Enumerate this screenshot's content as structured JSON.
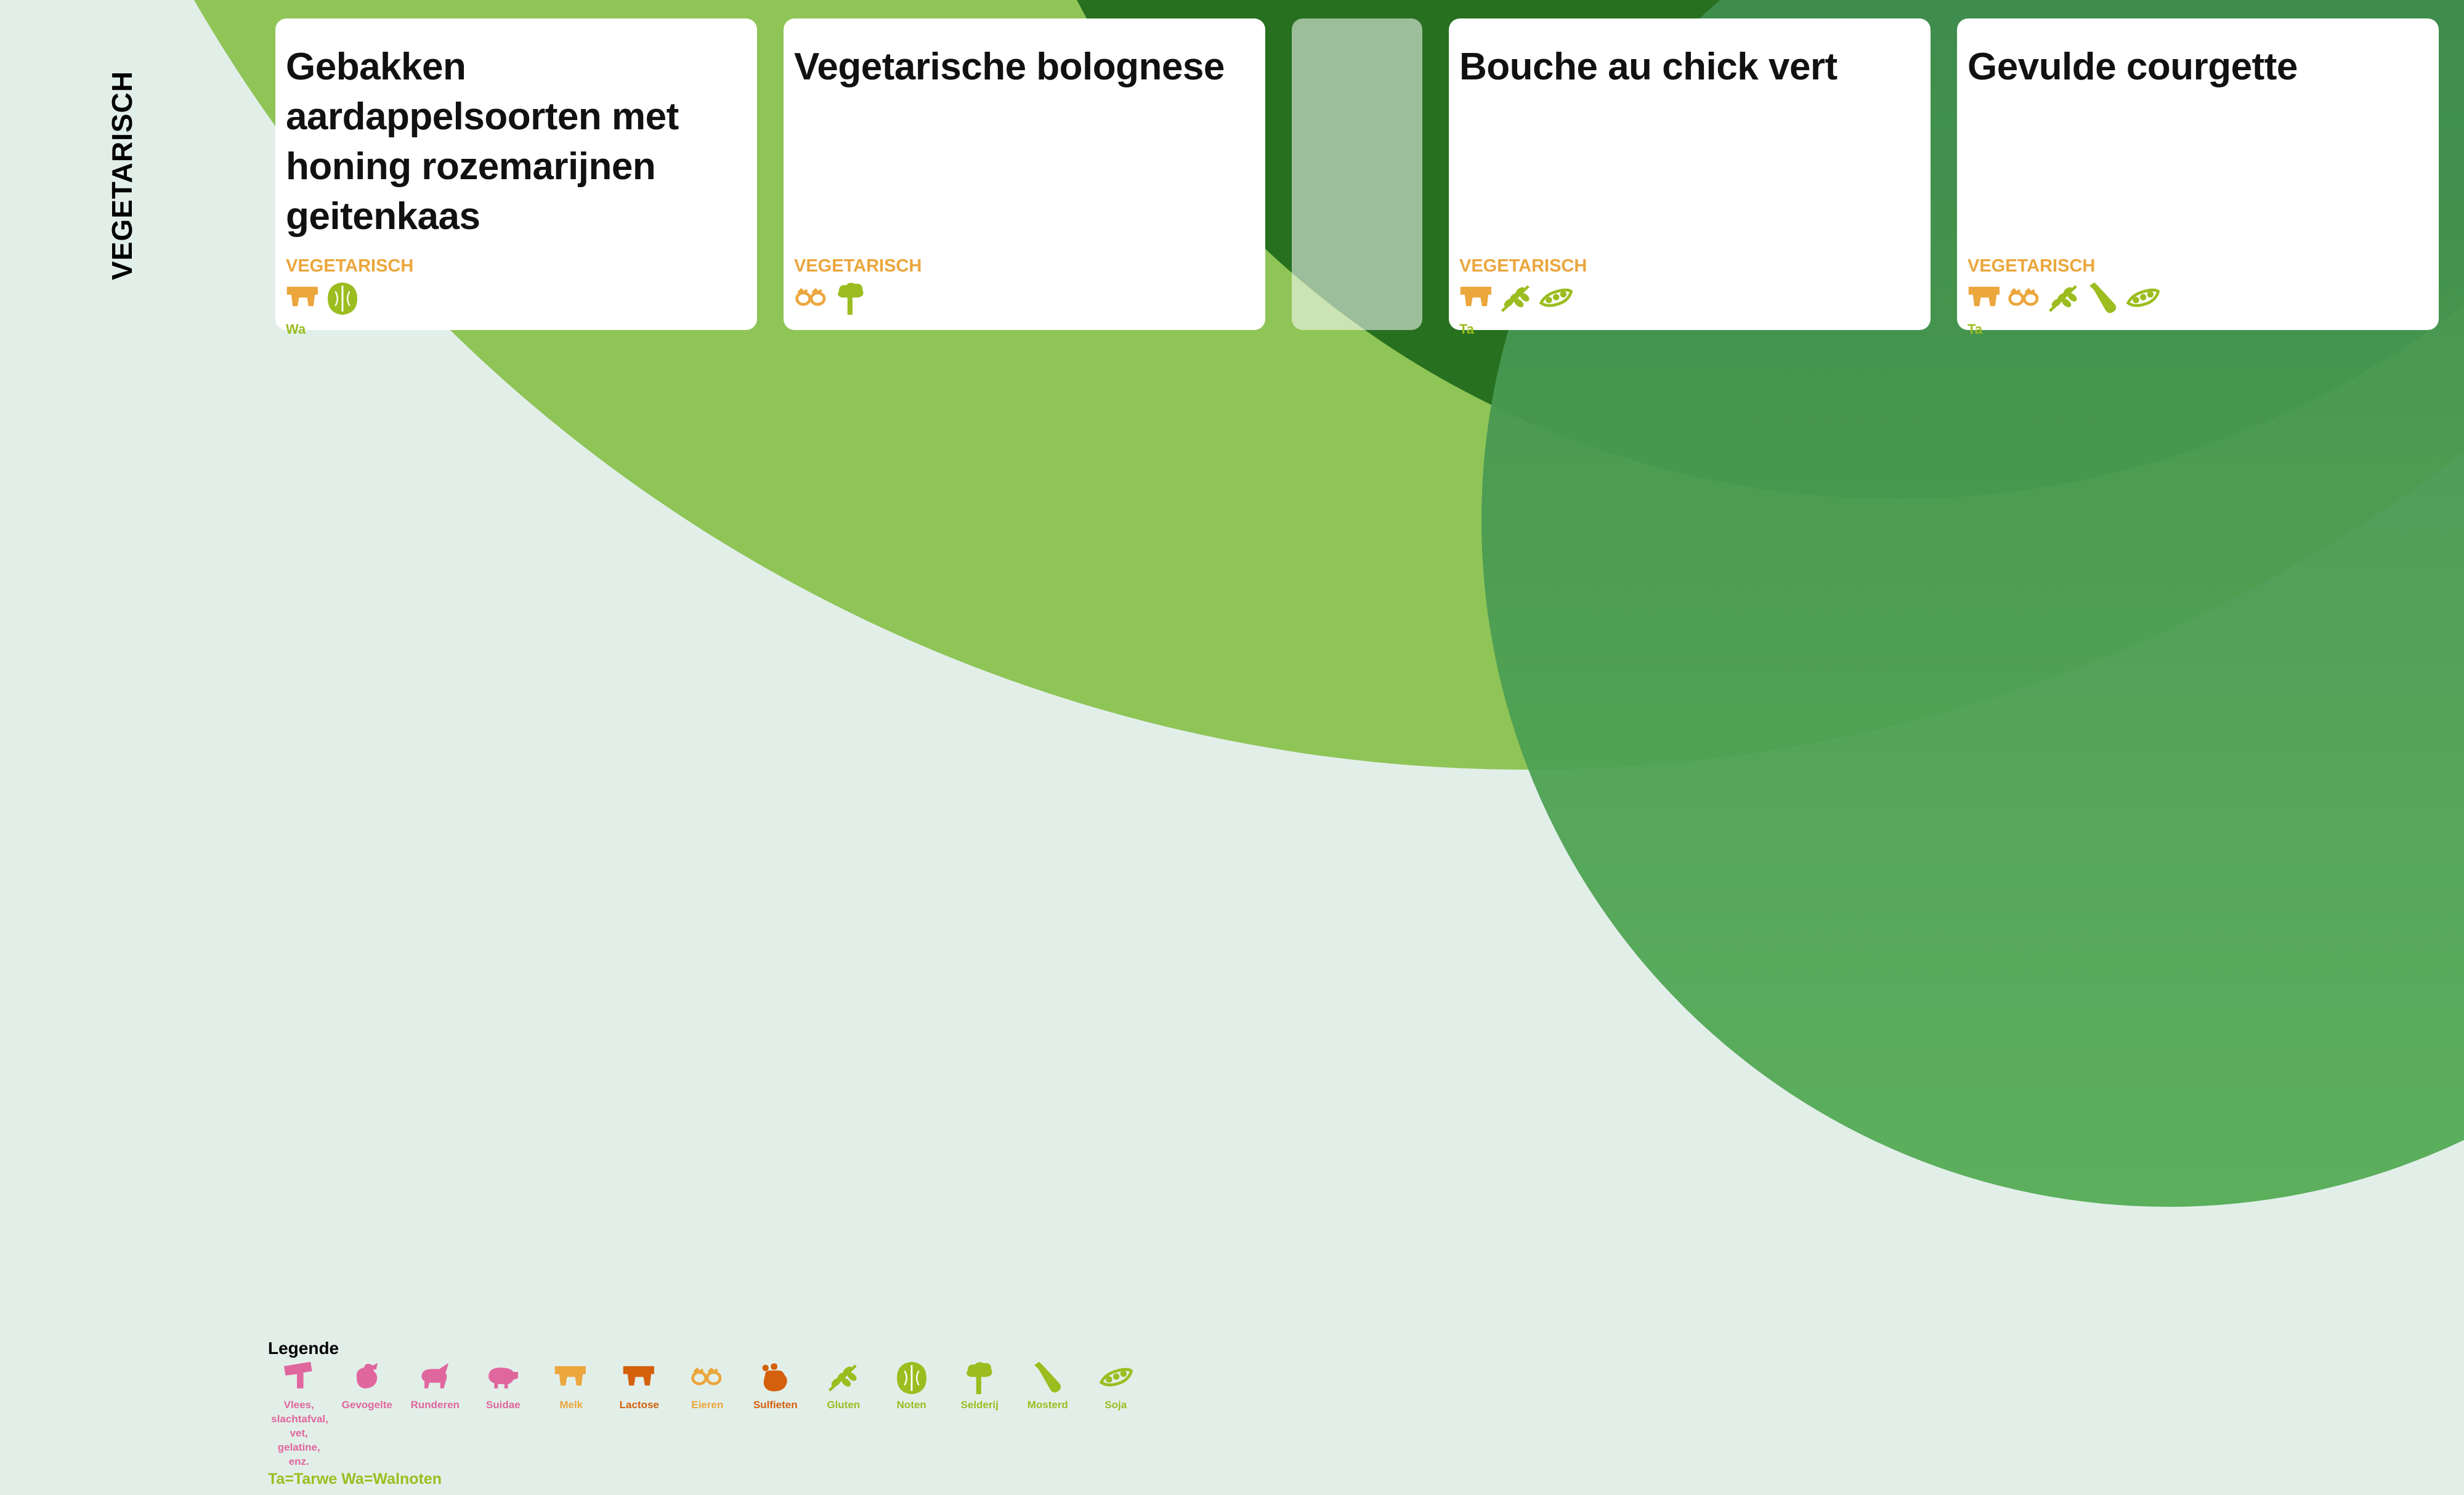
{
  "section_title": "VEGETARISCH",
  "colors": {
    "background": "#e2efe9",
    "meat": "#e0669e",
    "dairy": "#eba63c",
    "sulfite": "#d4600c",
    "plant": "#9bbd1f",
    "deco_light": "#8fc457",
    "deco_dark": "#26701f",
    "deco_mid": "#4a9a52"
  },
  "cards": [
    {
      "title": "Gebakken aardappelsoorten met honing rozemarijnen geitenkaas",
      "badge": "VEGETARISCH",
      "allergen_icons": [
        "melk-icon",
        "noten-icon"
      ],
      "note": "Wa"
    },
    {
      "title": "Vegetarische bolognese",
      "badge": "VEGETARISCH",
      "allergen_icons": [
        "eieren-icon",
        "selderij-icon"
      ],
      "note": ""
    },
    {
      "title": "",
      "badge": "",
      "allergen_icons": [],
      "note": ""
    },
    {
      "title": "Bouche au chick vert",
      "badge": "VEGETARISCH",
      "allergen_icons": [
        "melk-icon",
        "gluten-icon",
        "soja-icon"
      ],
      "note": "Ta"
    },
    {
      "title": "Gevulde courgette",
      "badge": "VEGETARISCH",
      "allergen_icons": [
        "melk-icon",
        "eieren-icon",
        "gluten-icon",
        "mosterd-icon",
        "soja-icon"
      ],
      "note": "Ta"
    }
  ],
  "legend": {
    "title": "Legende",
    "items": [
      {
        "label": "Vlees, slachtafval, vet, gelatine, enz.",
        "icon": "vlees-icon",
        "color": "#e0669e"
      },
      {
        "label": "Gevogelte",
        "icon": "gevogelte-icon",
        "color": "#e0669e"
      },
      {
        "label": "Runderen",
        "icon": "runderen-icon",
        "color": "#e0669e"
      },
      {
        "label": "Suidae",
        "icon": "suidae-icon",
        "color": "#e0669e"
      },
      {
        "label": "Melk",
        "icon": "melk-icon",
        "color": "#eba63c"
      },
      {
        "label": "Lactose",
        "icon": "lactose-icon",
        "color": "#d4600c"
      },
      {
        "label": "Eieren",
        "icon": "eieren-icon",
        "color": "#eba63c"
      },
      {
        "label": "Sulfieten",
        "icon": "sulfieten-icon",
        "color": "#d4600c"
      },
      {
        "label": "Gluten",
        "icon": "gluten-icon",
        "color": "#9bbd1f"
      },
      {
        "label": "Noten",
        "icon": "noten-icon",
        "color": "#9bbd1f"
      },
      {
        "label": "Selderij",
        "icon": "selderij-icon",
        "color": "#9bbd1f"
      },
      {
        "label": "Mosterd",
        "icon": "mosterd-icon",
        "color": "#9bbd1f"
      },
      {
        "label": "Soja",
        "icon": "soja-icon",
        "color": "#9bbd1f"
      }
    ],
    "note": "Ta=Tarwe  Wa=Walnoten"
  }
}
